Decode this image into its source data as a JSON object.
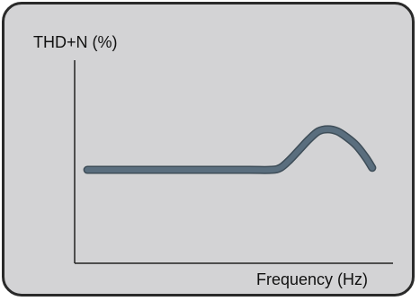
{
  "chart_data": {
    "type": "line",
    "ylabel": "THD+N (%)",
    "xlabel": "Frequency (Hz)",
    "grid": false,
    "axis_ticks": false,
    "xlim": [
      0,
      100
    ],
    "ylim": [
      0,
      100
    ],
    "series": [
      {
        "color": "#5a6e7e",
        "points": [
          [
            4,
            46
          ],
          [
            8,
            46
          ],
          [
            20,
            46
          ],
          [
            40,
            46
          ],
          [
            55,
            46
          ],
          [
            62,
            46
          ],
          [
            65,
            47
          ],
          [
            68,
            51
          ],
          [
            71,
            56
          ],
          [
            74,
            61
          ],
          [
            77,
            65
          ],
          [
            80,
            66
          ],
          [
            83,
            65
          ],
          [
            86,
            62
          ],
          [
            89,
            58
          ],
          [
            92,
            52
          ],
          [
            94,
            47
          ]
        ]
      }
    ]
  },
  "colors": {
    "panel_bg": "#d3d3d5",
    "panel_border": "#2a2a2a",
    "axis": "#222222"
  }
}
